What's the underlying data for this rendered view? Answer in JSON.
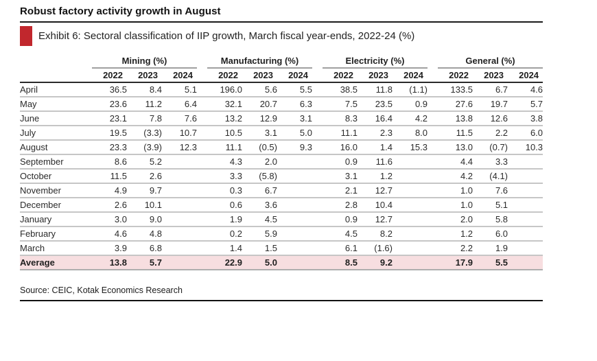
{
  "page_title": "Robust factory activity growth in August",
  "exhibit": {
    "title": "Exhibit 6: Sectoral classification of IIP growth, March fiscal year-ends, 2022-24 (%)"
  },
  "table": {
    "groups": [
      {
        "label": "Mining (%)"
      },
      {
        "label": "Manufacturing (%)"
      },
      {
        "label": "Electricity (%)"
      },
      {
        "label": "General (%)"
      }
    ],
    "year_headers": [
      "2022",
      "2023",
      "2024"
    ],
    "rows": [
      {
        "label": "April",
        "is_average": false,
        "values": [
          "36.5",
          "8.4",
          "5.1",
          "196.0",
          "5.6",
          "5.5",
          "38.5",
          "11.8",
          "(1.1)",
          "133.5",
          "6.7",
          "4.6"
        ]
      },
      {
        "label": "May",
        "is_average": false,
        "values": [
          "23.6",
          "11.2",
          "6.4",
          "32.1",
          "20.7",
          "6.3",
          "7.5",
          "23.5",
          "0.9",
          "27.6",
          "19.7",
          "5.7"
        ]
      },
      {
        "label": "June",
        "is_average": false,
        "values": [
          "23.1",
          "7.8",
          "7.6",
          "13.2",
          "12.9",
          "3.1",
          "8.3",
          "16.4",
          "4.2",
          "13.8",
          "12.6",
          "3.8"
        ]
      },
      {
        "label": "July",
        "is_average": false,
        "values": [
          "19.5",
          "(3.3)",
          "10.7",
          "10.5",
          "3.1",
          "5.0",
          "11.1",
          "2.3",
          "8.0",
          "11.5",
          "2.2",
          "6.0"
        ]
      },
      {
        "label": "August",
        "is_average": false,
        "values": [
          "23.3",
          "(3.9)",
          "12.3",
          "11.1",
          "(0.5)",
          "9.3",
          "16.0",
          "1.4",
          "15.3",
          "13.0",
          "(0.7)",
          "10.3"
        ]
      },
      {
        "label": "September",
        "is_average": false,
        "values": [
          "8.6",
          "5.2",
          "",
          "4.3",
          "2.0",
          "",
          "0.9",
          "11.6",
          "",
          "4.4",
          "3.3",
          ""
        ]
      },
      {
        "label": "October",
        "is_average": false,
        "values": [
          "11.5",
          "2.6",
          "",
          "3.3",
          "(5.8)",
          "",
          "3.1",
          "1.2",
          "",
          "4.2",
          "(4.1)",
          ""
        ]
      },
      {
        "label": "November",
        "is_average": false,
        "values": [
          "4.9",
          "9.7",
          "",
          "0.3",
          "6.7",
          "",
          "2.1",
          "12.7",
          "",
          "1.0",
          "7.6",
          ""
        ]
      },
      {
        "label": "December",
        "is_average": false,
        "values": [
          "2.6",
          "10.1",
          "",
          "0.6",
          "3.6",
          "",
          "2.8",
          "10.4",
          "",
          "1.0",
          "5.1",
          ""
        ]
      },
      {
        "label": "January",
        "is_average": false,
        "values": [
          "3.0",
          "9.0",
          "",
          "1.9",
          "4.5",
          "",
          "0.9",
          "12.7",
          "",
          "2.0",
          "5.8",
          ""
        ]
      },
      {
        "label": "February",
        "is_average": false,
        "values": [
          "4.6",
          "4.8",
          "",
          "0.2",
          "5.9",
          "",
          "4.5",
          "8.2",
          "",
          "1.2",
          "6.0",
          ""
        ]
      },
      {
        "label": "March",
        "is_average": false,
        "values": [
          "3.9",
          "6.8",
          "",
          "1.4",
          "1.5",
          "",
          "6.1",
          "(1.6)",
          "",
          "2.2",
          "1.9",
          ""
        ]
      },
      {
        "label": "Average",
        "is_average": true,
        "values": [
          "13.8",
          "5.7",
          "",
          "22.9",
          "5.0",
          "",
          "8.5",
          "9.2",
          "",
          "17.9",
          "5.5",
          ""
        ]
      }
    ]
  },
  "source": "Source: CEIC, Kotak Economics Research",
  "colors": {
    "accent_red": "#c1272d",
    "average_row_bg": "#f7dee0",
    "rule_dark": "#1a1a1a",
    "rule_light": "#c6c6c6"
  }
}
